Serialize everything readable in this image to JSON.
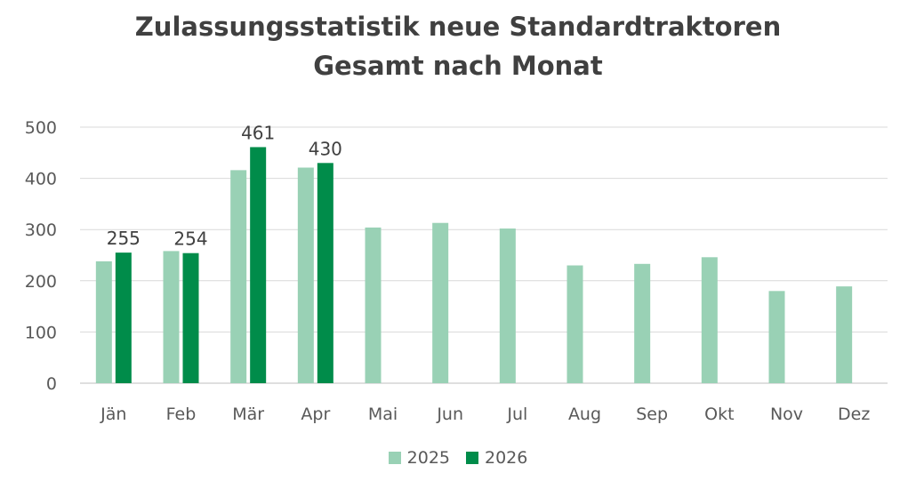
{
  "chart_data": {
    "type": "bar",
    "title_line1": "Zulassungsstatistik neue Standardtraktoren",
    "title_line2": "Gesamt nach Monat",
    "categories": [
      "Jän",
      "Feb",
      "Mär",
      "Apr",
      "Mai",
      "Jun",
      "Jul",
      "Aug",
      "Sep",
      "Okt",
      "Nov",
      "Dez"
    ],
    "series": [
      {
        "name": "2025",
        "color": "#99d1b5",
        "values": [
          238,
          258,
          416,
          421,
          304,
          313,
          302,
          230,
          233,
          246,
          180,
          189
        ]
      },
      {
        "name": "2026",
        "color": "#008c4a",
        "values": [
          255,
          254,
          461,
          430,
          null,
          null,
          null,
          null,
          null,
          null,
          null,
          null
        ],
        "data_labels": [
          "255",
          "254",
          "461",
          "430"
        ]
      }
    ],
    "ylim": [
      0,
      500
    ],
    "yticks": [
      "0",
      "100",
      "200",
      "300",
      "400",
      "500"
    ],
    "grid": true,
    "legend_position": "bottom"
  }
}
